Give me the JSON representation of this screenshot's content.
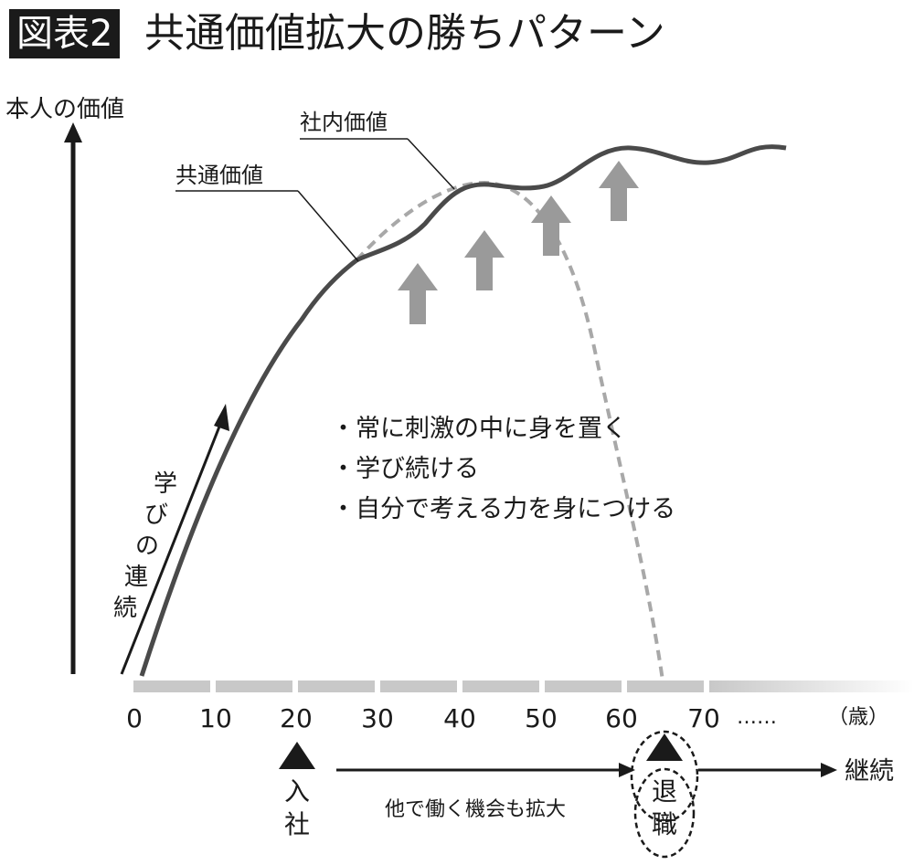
{
  "header": {
    "badge": "図表2",
    "title": "共通価値拡大の勝ちパターン"
  },
  "axes": {
    "y_label": "本人の価値",
    "x_unit": "（歳）",
    "x_ticks": [
      "0",
      "10",
      "20",
      "30",
      "40",
      "50",
      "60",
      "70"
    ],
    "x_ellipsis": "……"
  },
  "curves": {
    "shared_value_label": "共通価値",
    "internal_value_label": "社内価値"
  },
  "learning_arrow_label": [
    "学",
    "び",
    "の",
    "連",
    "続"
  ],
  "bullets": [
    "・常に刺激の中に身を置く",
    "・学び続ける",
    "・自分で考える力を身につける"
  ],
  "timeline": {
    "join_label": [
      "入",
      "社"
    ],
    "middle_label": "他で働く機会も拡大",
    "retire_label": [
      "退",
      "職"
    ],
    "end_label": "継続"
  },
  "colors": {
    "ink": "#1a1a1a",
    "curve": "#4a4a4a",
    "dashed": "#a8a8a8",
    "up_arrow": "#9a9a9a",
    "axis_bar": "#c8c8c8"
  }
}
